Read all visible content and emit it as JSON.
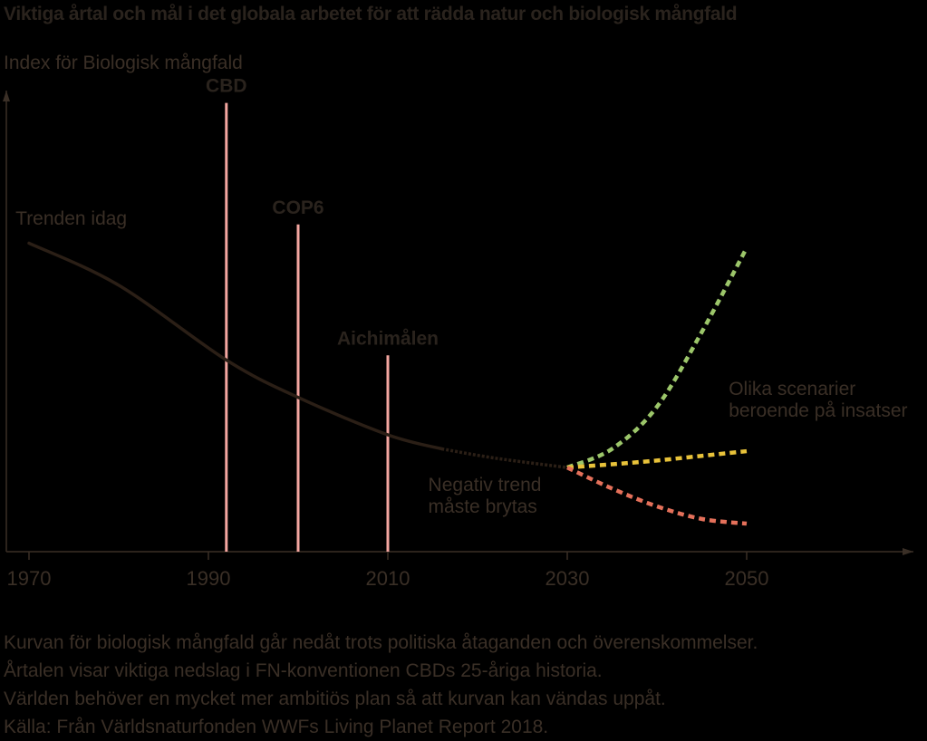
{
  "title": "Viktiga årtal och mål i det globala arbetet för att rädda natur och biologisk mångfald",
  "ylabel": "Index för Biologisk mångfald",
  "chart_data": {
    "type": "line",
    "title": "Viktiga årtal och mål i det globala arbetet för att rädda natur och biologisk mångfald",
    "xlabel": "",
    "ylabel": "Index för Biologisk mångfald",
    "xlim": [
      1970,
      2060
    ],
    "ylim": [
      0,
      100
    ],
    "x_ticks": [
      1970,
      1990,
      2010,
      2030,
      2050
    ],
    "grid": false,
    "series": [
      {
        "x": [
          1970,
          1980,
          1992,
          2000,
          2010,
          2016,
          2022,
          2030
        ],
        "y": [
          66,
          57,
          41,
          33,
          25,
          22,
          20,
          18
        ],
        "color": "#2b1f16",
        "style": "solid-then-dotted"
      },
      {
        "x": [
          2030,
          2035,
          2040,
          2045,
          2050
        ],
        "y": [
          18,
          22,
          31,
          47,
          65
        ],
        "color": "#9cc66a",
        "style": "dashed"
      },
      {
        "x": [
          2030,
          2035,
          2040,
          2045,
          2050
        ],
        "y": [
          18,
          18.7,
          19.5,
          20.5,
          21.5
        ],
        "color": "#e8c23a",
        "style": "dashed"
      },
      {
        "x": [
          2030,
          2035,
          2040,
          2045,
          2050
        ],
        "y": [
          18,
          13.5,
          9.7,
          7,
          6
        ],
        "color": "#e4705a",
        "style": "dashed"
      }
    ],
    "events": [
      {
        "label": "CBD",
        "x": 1992,
        "y": 96
      },
      {
        "label": "COP6",
        "x": 2000,
        "y": 70
      },
      {
        "label": "Aichimålen",
        "x": 2010,
        "y": 42
      }
    ],
    "annotations": [
      {
        "lines": [
          "Trenden idag"
        ],
        "x": 1968.5,
        "y": 70
      },
      {
        "lines": [
          "Negativ trend",
          "måste brytas"
        ],
        "x": 2014.5,
        "y": 13
      },
      {
        "lines": [
          "Olika scenarier",
          "beroende på insatser"
        ],
        "x": 2048,
        "y": 33.5
      }
    ],
    "event_color": "#f4a6a0"
  },
  "caption": [
    "Kurvan för biologisk mångfald går nedåt trots politiska åtaganden och överenskommelser.",
    "Årtalen visar viktiga nedslag i FN-konventionen CBDs 25-åriga historia.",
    "Världen behöver en mycket mer ambitiös plan så att kurvan kan vändas uppåt.",
    "Källa: Från Världsnaturfonden WWFs Living Planet Report 2018."
  ]
}
